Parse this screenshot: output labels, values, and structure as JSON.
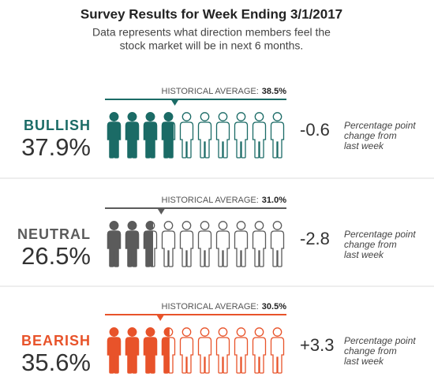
{
  "chart_data": {
    "type": "pictogram",
    "title": "Survey Results for Week Ending 3/1/2017",
    "subtitle": [
      "Data represents what direction members feel the",
      "stock market will be in next 6 months."
    ],
    "average_text": "HISTORICAL AVERAGE:",
    "note": [
      "Percentage point",
      "change from",
      "last week"
    ],
    "xlim": [
      0,
      100
    ],
    "icons": 10,
    "series": [
      {
        "name": "BULLISH",
        "color": "#1b6b66",
        "value": 37.9,
        "value_label": "37.9%",
        "average": 38.5,
        "average_label": "38.5%",
        "change": -0.6,
        "change_label": "-0.6"
      },
      {
        "name": "NEUTRAL",
        "color": "#5b5b5b",
        "value": 26.5,
        "value_label": "26.5%",
        "average": 31.0,
        "average_label": "31.0%",
        "change": -2.8,
        "change_label": "-2.8"
      },
      {
        "name": "BEARISH",
        "color": "#e8532a",
        "value": 35.6,
        "value_label": "35.6%",
        "average": 30.5,
        "average_label": "30.5%",
        "change": 3.3,
        "change_label": "+3.3"
      }
    ]
  }
}
